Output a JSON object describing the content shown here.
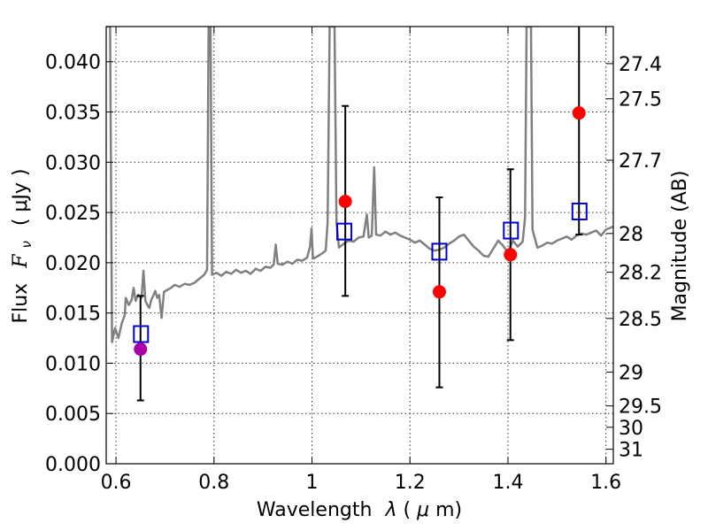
{
  "chart_data": {
    "type": "scatter",
    "xlabel_text": "Wavelength",
    "xlabel_symbol": "λ",
    "xlabel_unit_open": " (",
    "xlabel_mu": "μ",
    "xlabel_unit_close": "m)",
    "ylabel_text": "Flux",
    "ylabel_symbol": "F",
    "ylabel_sub": "ν",
    "ylabel_unit": "( μJy )",
    "ylabel_right": "Magnitude (AB)",
    "xlim": [
      0.58,
      1.615
    ],
    "ylim": [
      0.0,
      0.0435
    ],
    "x_ticks": [
      0.6,
      0.8,
      1.0,
      1.2,
      1.4,
      1.6
    ],
    "x_tick_labels": [
      "0.6",
      "0.8",
      "1",
      "1.2",
      "1.4",
      "1.6"
    ],
    "y_ticks": [
      0.0,
      0.005,
      0.01,
      0.015,
      0.02,
      0.025,
      0.03,
      0.035,
      0.04
    ],
    "y_tick_labels": [
      "0.000",
      "0.005",
      "0.010",
      "0.015",
      "0.020",
      "0.025",
      "0.030",
      "0.035",
      "0.040"
    ],
    "mag_ticks": [
      27.4,
      27.5,
      27.7,
      28,
      28.2,
      28.5,
      29,
      29.5,
      30,
      31
    ],
    "mag_tick_labels": [
      "27.4",
      "27.5",
      "27.7",
      "28",
      "28.2",
      "28.5",
      "29",
      "29.5",
      "30",
      "31"
    ],
    "observed": [
      {
        "x": 0.65,
        "y": 0.0114,
        "err_low": 0.0063,
        "err_high": 0.0167,
        "color": "#aa00aa"
      },
      {
        "x": 1.068,
        "y": 0.0261,
        "err_low": 0.0167,
        "err_high": 0.0356,
        "color": "#ff0000"
      },
      {
        "x": 1.26,
        "y": 0.0171,
        "err_low": 0.0076,
        "err_high": 0.0265,
        "color": "#ff0000"
      },
      {
        "x": 1.405,
        "y": 0.0208,
        "err_low": 0.0123,
        "err_high": 0.0293,
        "color": "#ff0000"
      },
      {
        "x": 1.545,
        "y": 0.0349,
        "err_low": 0.0228,
        "err_high": 0.0435,
        "color": "#ff0000"
      }
    ],
    "model": [
      {
        "x": 0.651,
        "y": 0.0129
      },
      {
        "x": 1.066,
        "y": 0.0231
      },
      {
        "x": 1.26,
        "y": 0.0211
      },
      {
        "x": 1.406,
        "y": 0.0232
      },
      {
        "x": 1.546,
        "y": 0.0251
      }
    ],
    "spectrum": [
      [
        0.58,
        0.0435
      ],
      [
        0.588,
        0.0435
      ],
      [
        0.592,
        0.0121
      ],
      [
        0.598,
        0.0135
      ],
      [
        0.605,
        0.0125
      ],
      [
        0.612,
        0.014
      ],
      [
        0.618,
        0.0148
      ],
      [
        0.62,
        0.0165
      ],
      [
        0.626,
        0.0158
      ],
      [
        0.632,
        0.0163
      ],
      [
        0.636,
        0.0175
      ],
      [
        0.64,
        0.0162
      ],
      [
        0.645,
        0.0168
      ],
      [
        0.652,
        0.0165
      ],
      [
        0.656,
        0.0192
      ],
      [
        0.66,
        0.0162
      ],
      [
        0.664,
        0.0158
      ],
      [
        0.668,
        0.0155
      ],
      [
        0.672,
        0.0163
      ],
      [
        0.676,
        0.0167
      ],
      [
        0.68,
        0.0172
      ],
      [
        0.684,
        0.0165
      ],
      [
        0.688,
        0.0168
      ],
      [
        0.693,
        0.0145
      ],
      [
        0.698,
        0.0171
      ],
      [
        0.705,
        0.0173
      ],
      [
        0.712,
        0.0175
      ],
      [
        0.72,
        0.0178
      ],
      [
        0.73,
        0.0176
      ],
      [
        0.74,
        0.0179
      ],
      [
        0.75,
        0.0178
      ],
      [
        0.76,
        0.018
      ],
      [
        0.77,
        0.0184
      ],
      [
        0.78,
        0.0188
      ],
      [
        0.786,
        0.0193
      ],
      [
        0.789,
        0.0435
      ],
      [
        0.793,
        0.0435
      ],
      [
        0.796,
        0.0188
      ],
      [
        0.805,
        0.019
      ],
      [
        0.815,
        0.0187
      ],
      [
        0.825,
        0.0191
      ],
      [
        0.835,
        0.0189
      ],
      [
        0.845,
        0.0193
      ],
      [
        0.855,
        0.019
      ],
      [
        0.865,
        0.0192
      ],
      [
        0.875,
        0.0189
      ],
      [
        0.885,
        0.0194
      ],
      [
        0.895,
        0.0192
      ],
      [
        0.905,
        0.0196
      ],
      [
        0.915,
        0.0195
      ],
      [
        0.922,
        0.0198
      ],
      [
        0.926,
        0.0218
      ],
      [
        0.93,
        0.0199
      ],
      [
        0.94,
        0.0198
      ],
      [
        0.95,
        0.0201
      ],
      [
        0.96,
        0.0199
      ],
      [
        0.97,
        0.0203
      ],
      [
        0.98,
        0.0202
      ],
      [
        0.99,
        0.0205
      ],
      [
        0.996,
        0.0216
      ],
      [
        0.999,
        0.0234
      ],
      [
        1.002,
        0.0204
      ],
      [
        1.01,
        0.0206
      ],
      [
        1.02,
        0.0209
      ],
      [
        1.028,
        0.0212
      ],
      [
        1.032,
        0.024
      ],
      [
        1.036,
        0.0435
      ],
      [
        1.046,
        0.0435
      ],
      [
        1.05,
        0.024
      ],
      [
        1.055,
        0.0215
      ],
      [
        1.065,
        0.0219
      ],
      [
        1.075,
        0.0222
      ],
      [
        1.085,
        0.0221
      ],
      [
        1.095,
        0.0225
      ],
      [
        1.105,
        0.0226
      ],
      [
        1.112,
        0.0248
      ],
      [
        1.116,
        0.0225
      ],
      [
        1.122,
        0.0227
      ],
      [
        1.127,
        0.0295
      ],
      [
        1.131,
        0.0228
      ],
      [
        1.14,
        0.0227
      ],
      [
        1.15,
        0.0231
      ],
      [
        1.16,
        0.0228
      ],
      [
        1.17,
        0.023
      ],
      [
        1.18,
        0.0227
      ],
      [
        1.19,
        0.0225
      ],
      [
        1.2,
        0.0223
      ],
      [
        1.21,
        0.022
      ],
      [
        1.22,
        0.0222
      ],
      [
        1.23,
        0.0218
      ],
      [
        1.24,
        0.0214
      ],
      [
        1.25,
        0.0212
      ],
      [
        1.26,
        0.0213
      ],
      [
        1.27,
        0.0215
      ],
      [
        1.28,
        0.0219
      ],
      [
        1.29,
        0.0222
      ],
      [
        1.3,
        0.0226
      ],
      [
        1.31,
        0.0228
      ],
      [
        1.32,
        0.0222
      ],
      [
        1.33,
        0.0216
      ],
      [
        1.34,
        0.0212
      ],
      [
        1.35,
        0.0207
      ],
      [
        1.36,
        0.0206
      ],
      [
        1.37,
        0.0214
      ],
      [
        1.38,
        0.0222
      ],
      [
        1.39,
        0.0217
      ],
      [
        1.4,
        0.021
      ],
      [
        1.41,
        0.0222
      ],
      [
        1.42,
        0.0216
      ],
      [
        1.43,
        0.0221
      ],
      [
        1.435,
        0.0245
      ],
      [
        1.438,
        0.0435
      ],
      [
        1.447,
        0.0435
      ],
      [
        1.45,
        0.0233
      ],
      [
        1.46,
        0.0215
      ],
      [
        1.47,
        0.0217
      ],
      [
        1.48,
        0.022
      ],
      [
        1.49,
        0.0219
      ],
      [
        1.5,
        0.0222
      ],
      [
        1.51,
        0.0224
      ],
      [
        1.52,
        0.0226
      ],
      [
        1.53,
        0.0223
      ],
      [
        1.54,
        0.0227
      ],
      [
        1.55,
        0.0229
      ],
      [
        1.56,
        0.0228
      ],
      [
        1.57,
        0.023
      ],
      [
        1.58,
        0.0232
      ],
      [
        1.59,
        0.0227
      ],
      [
        1.6,
        0.0233
      ],
      [
        1.615,
        0.0236
      ]
    ],
    "colors": {
      "spectrum": "#808080",
      "model_box": "#0000cc",
      "error_bar": "#000000"
    }
  }
}
